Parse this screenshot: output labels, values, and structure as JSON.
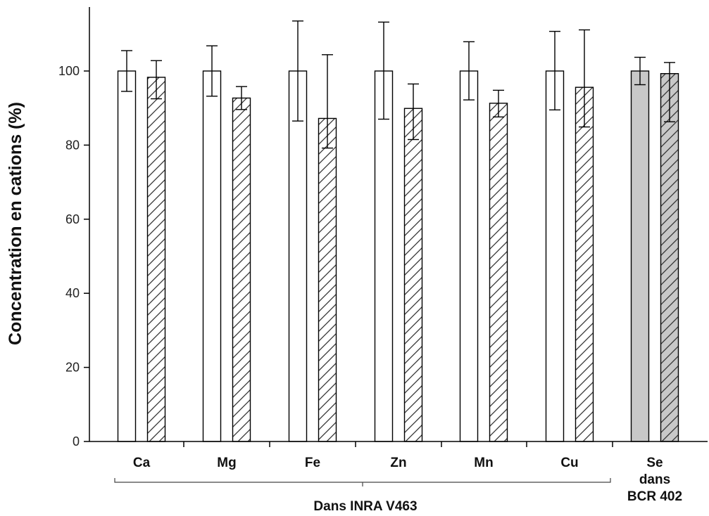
{
  "chart_data": {
    "type": "bar",
    "ylabel": "Concentration en cations (%)",
    "ylim": [
      0,
      115
    ],
    "yticks": [
      0,
      20,
      40,
      60,
      80,
      100
    ],
    "grid": false,
    "categories": [
      {
        "lines": [
          "Ca"
        ]
      },
      {
        "lines": [
          "Mg"
        ]
      },
      {
        "lines": [
          "Fe"
        ]
      },
      {
        "lines": [
          "Zn"
        ]
      },
      {
        "lines": [
          "Mn"
        ]
      },
      {
        "lines": [
          "Cu"
        ]
      },
      {
        "lines": [
          "Se",
          "dans",
          "BCR 402"
        ]
      }
    ],
    "series": [
      {
        "style": "plain",
        "values": [
          100,
          100,
          100,
          100,
          100,
          100,
          100
        ],
        "err_low": [
          94.5,
          93.2,
          86.5,
          87.0,
          92.2,
          89.5,
          96.3
        ],
        "err_high": [
          105.5,
          106.8,
          113.5,
          113.2,
          107.9,
          110.7,
          103.7
        ]
      },
      {
        "style": "hatched",
        "values": [
          98.3,
          92.7,
          87.2,
          89.9,
          91.3,
          95.6,
          99.3
        ],
        "err_low": [
          92.5,
          89.6,
          79.2,
          81.5,
          87.6,
          84.9,
          86.3
        ],
        "err_high": [
          102.8,
          95.8,
          104.4,
          96.5,
          94.8,
          111.1,
          102.3
        ]
      }
    ],
    "fill_colors": {
      "default": "#ffffff",
      "last_category": "#c8c8c8"
    },
    "group_annotation": {
      "label": "Dans INRA V463",
      "spans_categories": [
        0,
        5
      ]
    }
  }
}
